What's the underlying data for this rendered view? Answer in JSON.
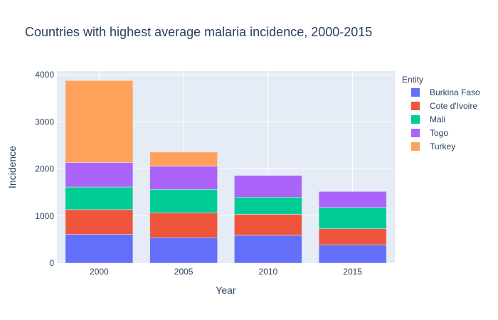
{
  "chart_data": {
    "type": "bar",
    "barmode": "stack",
    "title": "Countries with highest average malaria incidence, 2000-2015",
    "xlabel": "Year",
    "ylabel": "Incidence",
    "categories": [
      "2000",
      "2005",
      "2010",
      "2015"
    ],
    "ylim": [
      0,
      4000
    ],
    "yticks": [
      0,
      1000,
      2000,
      3000,
      4000
    ],
    "ytick_labels": [
      "0",
      "1000",
      "2000",
      "3000",
      "4000"
    ],
    "grid": true,
    "legend": {
      "title": "Entity",
      "position": "right"
    },
    "series": [
      {
        "name": "Burkina Faso",
        "color": "#636efa",
        "values": [
          610,
          540,
          590,
          385
        ]
      },
      {
        "name": "Cote d'Ivoire",
        "color": "#ef553b",
        "values": [
          525,
          530,
          445,
          345
        ]
      },
      {
        "name": "Mali",
        "color": "#00cc96",
        "values": [
          480,
          495,
          365,
          450
        ]
      },
      {
        "name": "Togo",
        "color": "#ab63fa",
        "values": [
          520,
          490,
          460,
          340
        ]
      },
      {
        "name": "Turkey",
        "color": "#ffa15a",
        "values": [
          1740,
          300,
          0,
          0
        ]
      }
    ]
  }
}
